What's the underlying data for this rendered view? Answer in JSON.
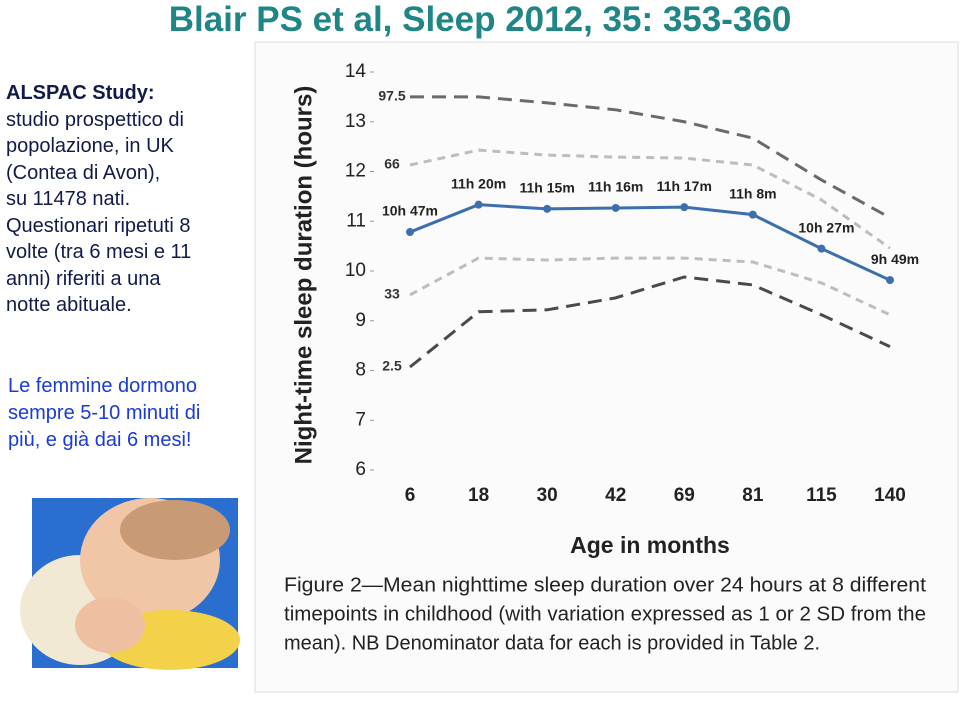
{
  "slide": {
    "title": "Blair PS et al, Sleep 2012, 35: 353-360",
    "study_heading": "ALSPAC Study:",
    "study_lines": [
      "studio prospettico di",
      "popolazione, in UK",
      "(Contea di Avon),",
      "su 11478 nati.",
      "Questionari ripetuti 8",
      "volte (tra 6 mesi e 11",
      "anni) riferiti a una",
      "notte abituale."
    ],
    "highlight_lines": [
      "Le femmine dormono",
      "sempre 5-10 minuti di",
      "più, e già dai 6 mesi!"
    ],
    "caption_lines": [
      "Figure 2—Mean nighttime sleep duration over 24 hours at 8 different",
      "timepoints in childhood (with variation expressed as 1 or 2 SD from the",
      "mean). NB Denominator data for each is provided in Table 2."
    ]
  },
  "chart_data": {
    "type": "line",
    "x_label": "Age in months",
    "y_label": "Night-time sleep duration (hours)",
    "categories": [
      "6",
      "18",
      "30",
      "42",
      "69",
      "81",
      "115",
      "140"
    ],
    "ylim": [
      6,
      14
    ],
    "yticks": [
      6,
      7,
      8,
      9,
      10,
      11,
      12,
      13,
      14
    ],
    "series": [
      {
        "name": "97.5",
        "color": "#6a6a6a",
        "dash": "14 8",
        "values": [
          13.5,
          13.5,
          13.38,
          13.24,
          13.0,
          12.67,
          11.83,
          11.07
        ]
      },
      {
        "name": "66",
        "color": "#bdbdbd",
        "dash": "8 6",
        "values": [
          12.13,
          12.43,
          12.33,
          12.29,
          12.27,
          12.13,
          11.43,
          10.46
        ]
      },
      {
        "color": "#3d6fae",
        "markers": true,
        "values": [
          10.783,
          11.333,
          11.25,
          11.267,
          11.283,
          11.133,
          10.45,
          9.817
        ],
        "value_labels": [
          "10h 47m",
          "11h 20m",
          "11h 15m",
          "11h 16m",
          "11h 17m",
          "11h 8m",
          "10h 27m",
          "9h 49m"
        ]
      },
      {
        "name": "33",
        "color": "#bdbdbd",
        "dash": "8 6",
        "values": [
          9.52,
          10.26,
          10.22,
          10.26,
          10.26,
          10.18,
          9.76,
          9.12
        ]
      },
      {
        "name": "2.5",
        "color": "#4a4a4a",
        "dash": "14 8",
        "values": [
          8.07,
          9.18,
          9.22,
          9.46,
          9.88,
          9.72,
          9.12,
          8.48
        ]
      }
    ]
  }
}
